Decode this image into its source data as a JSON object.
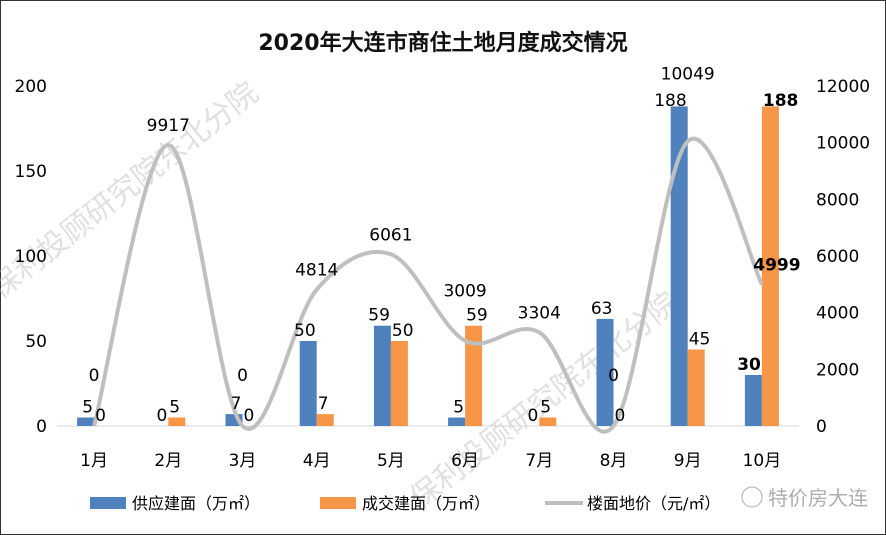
{
  "chart_data": {
    "type": "bar+line",
    "title": "2020年大连市商住土地月度成交情况",
    "categories": [
      "1月",
      "2月",
      "3月",
      "4月",
      "5月",
      "6月",
      "7月",
      "8月",
      "9月",
      "10月"
    ],
    "series": [
      {
        "name": "供应建面（万㎡）",
        "type": "bar",
        "axis": "left",
        "color": "#4f81bd",
        "values": [
          5,
          0,
          7,
          50,
          59,
          5,
          0,
          63,
          188,
          30
        ]
      },
      {
        "name": "成交建面（万㎡）",
        "type": "bar",
        "axis": "left",
        "color": "#f79646",
        "values": [
          0,
          5,
          0,
          7,
          50,
          59,
          5,
          0,
          45,
          188
        ]
      },
      {
        "name": "楼面地价（元/㎡）",
        "type": "line",
        "smooth": true,
        "axis": "right",
        "color": "#bfbfbf",
        "values": [
          0,
          9917,
          0,
          4814,
          6061,
          3009,
          3304,
          0,
          10049,
          4999
        ]
      }
    ],
    "left_axis": {
      "range": [
        0,
        200
      ],
      "ticks": [
        "0",
        "50",
        "100",
        "150",
        "200"
      ]
    },
    "right_axis": {
      "range": [
        0,
        12000
      ],
      "ticks": [
        "0",
        "2000",
        "4000",
        "6000",
        "8000",
        "10000",
        "12000"
      ]
    },
    "grid": false,
    "legend": "bottom"
  },
  "watermarks": {
    "diagonal": "保利投顾研究院东北分院",
    "corner": "特价房大连"
  }
}
